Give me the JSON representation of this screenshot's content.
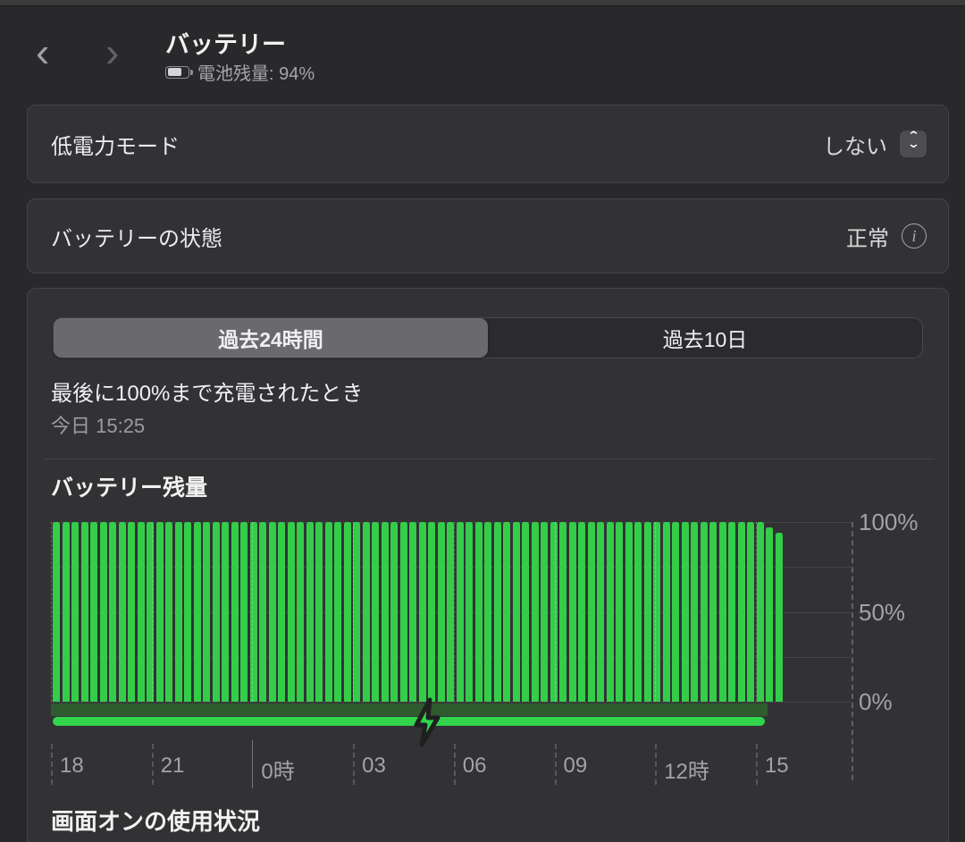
{
  "icons": {
    "back": "‹",
    "forward": "›",
    "stepper_up": "⌃",
    "stepper_down": "⌄",
    "info": "i"
  },
  "header": {
    "title": "バッテリー",
    "battery_status": "電池残量: 94%",
    "battery_percent": 94
  },
  "low_power": {
    "label": "低電力モード",
    "value": "しない"
  },
  "battery_health": {
    "label": "バッテリーの状態",
    "value": "正常"
  },
  "tabs": {
    "tab_24h": "過去24時間",
    "tab_10d": "過去10日",
    "selected": "過去24時間"
  },
  "last_charge": {
    "label": "最後に100%まで充電されたとき",
    "value": "今日 15:25"
  },
  "screen_on": {
    "heading": "画面オンの使用状況"
  },
  "colors": {
    "bar_green": "#34cd4a",
    "charge_line_green": "#31d54b",
    "charge_band_green": "#2e5c2f",
    "card_bg": "#323234",
    "page_bg": "#29292b"
  },
  "chart_data": {
    "type": "bar",
    "title": "バッテリー残量",
    "ylabel": "",
    "xlabel": "",
    "ylim": [
      0,
      100
    ],
    "grid": true,
    "y_tick_labels": [
      "100%",
      "50%",
      "0%"
    ],
    "y_tick_values": [
      100,
      50,
      0
    ],
    "x_tick_labels": [
      "18",
      "21",
      "0時",
      "03",
      "06",
      "09",
      "12時",
      "15"
    ],
    "midnight_tick_index": 2,
    "charging": {
      "label": "charging-period",
      "covers_x_range": "18:00-15:25"
    },
    "values": [
      100,
      100,
      100,
      100,
      100,
      100,
      100,
      100,
      100,
      100,
      100,
      100,
      100,
      100,
      100,
      100,
      100,
      100,
      100,
      100,
      100,
      100,
      100,
      100,
      100,
      100,
      100,
      100,
      100,
      100,
      100,
      100,
      100,
      100,
      100,
      100,
      100,
      100,
      100,
      100,
      100,
      100,
      100,
      100,
      100,
      100,
      100,
      100,
      100,
      100,
      100,
      100,
      100,
      100,
      100,
      100,
      100,
      100,
      100,
      100,
      100,
      100,
      100,
      100,
      100,
      100,
      100,
      100,
      100,
      100,
      100,
      100,
      100,
      100,
      100,
      100,
      97,
      94
    ]
  }
}
